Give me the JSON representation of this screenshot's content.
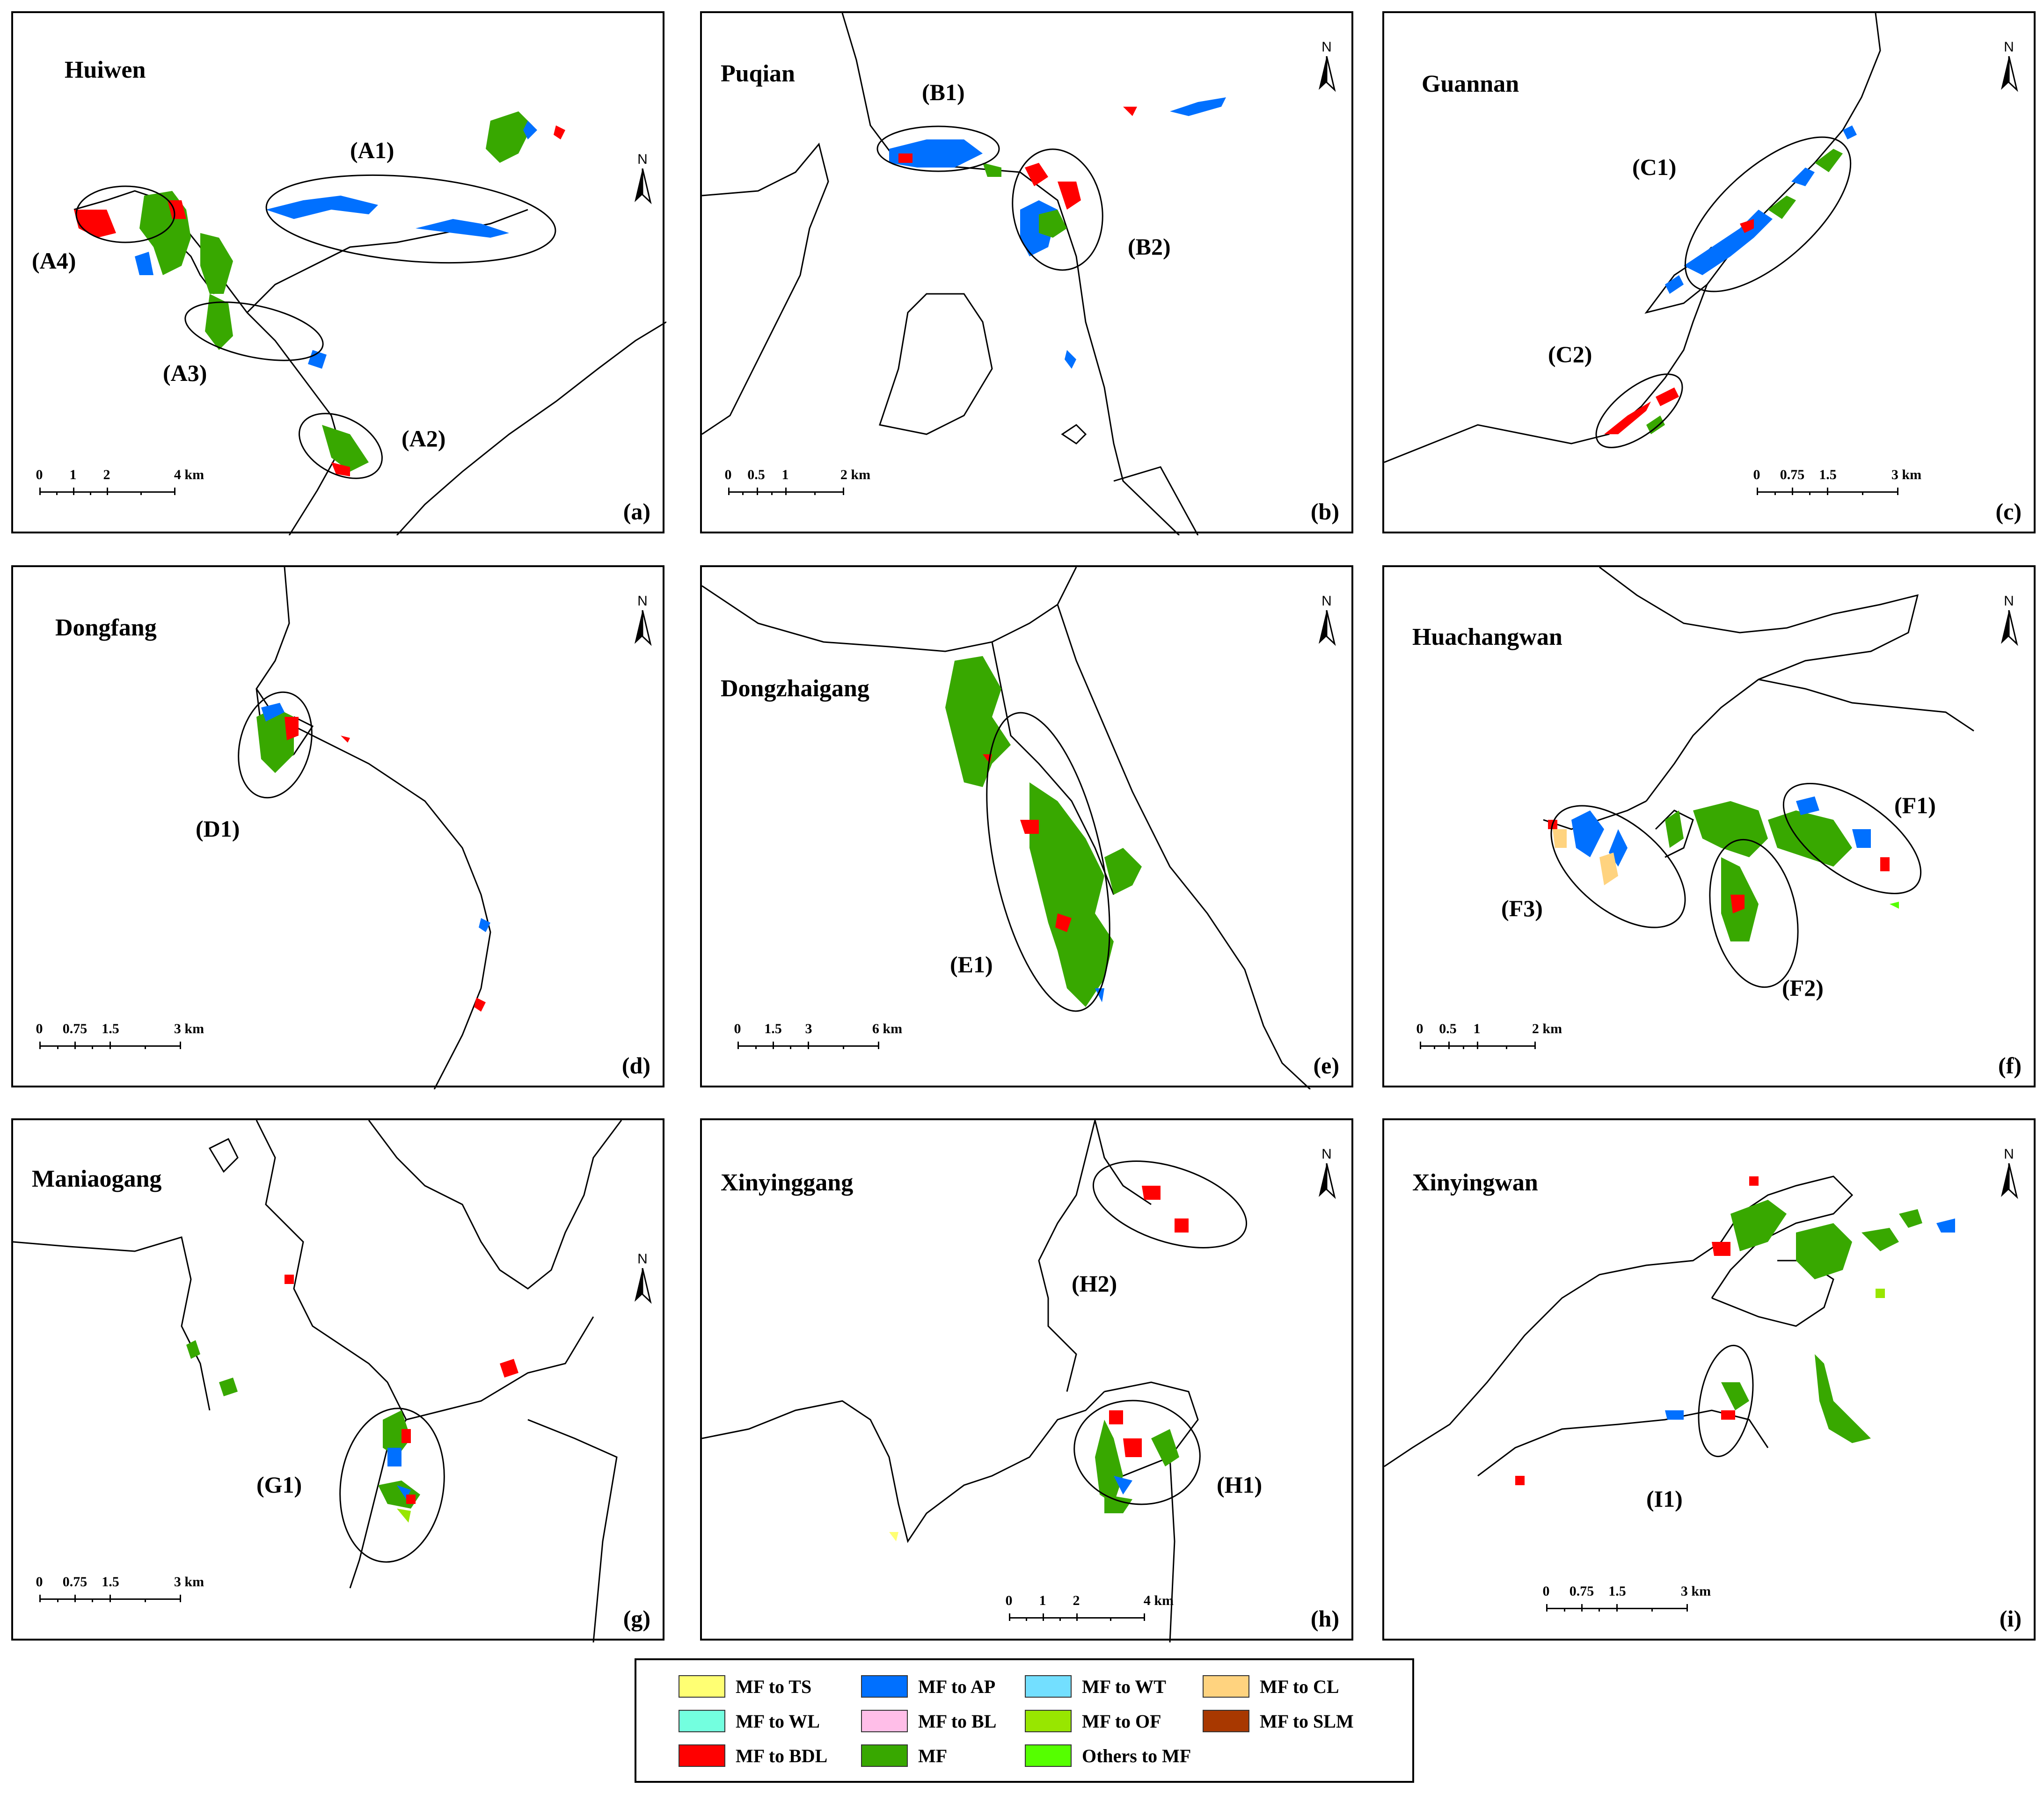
{
  "panels": [
    {
      "id": "a",
      "title": "Huiwen",
      "label": "(a)",
      "zones": [
        "(A1)",
        "(A2)",
        "(A3)",
        "(A4)"
      ],
      "scale": [
        "0",
        "1",
        "2",
        "4 km"
      ]
    },
    {
      "id": "b",
      "title": "Puqian",
      "label": "(b)",
      "zones": [
        "(B1)",
        "(B2)"
      ],
      "scale": [
        "0",
        "0.5",
        "1",
        "2 km"
      ]
    },
    {
      "id": "c",
      "title": "Guannan",
      "label": "(c)",
      "zones": [
        "(C1)",
        "(C2)"
      ],
      "scale": [
        "0",
        "0.75",
        "1.5",
        "3 km"
      ]
    },
    {
      "id": "d",
      "title": "Dongfang",
      "label": "(d)",
      "zones": [
        "(D1)"
      ],
      "scale": [
        "0",
        "0.75",
        "1.5",
        "3 km"
      ]
    },
    {
      "id": "e",
      "title": "Dongzhaigang",
      "label": "(e)",
      "zones": [
        "(E1)"
      ],
      "scale": [
        "0",
        "1.5",
        "3",
        "6 km"
      ]
    },
    {
      "id": "f",
      "title": "Huachangwan",
      "label": "(f)",
      "zones": [
        "(F1)",
        "(F2)",
        "(F3)"
      ],
      "scale": [
        "0",
        "0.5",
        "1",
        "2 km"
      ]
    },
    {
      "id": "g",
      "title": "Maniaogang",
      "label": "(g)",
      "zones": [
        "(G1)"
      ],
      "scale": [
        "0",
        "0.75",
        "1.5",
        "3 km"
      ]
    },
    {
      "id": "h",
      "title": "Xinyinggang",
      "label": "(h)",
      "zones": [
        "(H1)",
        "(H2)"
      ],
      "scale": [
        "0",
        "1",
        "2",
        "4 km"
      ]
    },
    {
      "id": "i",
      "title": "Xinyingwan",
      "label": "(i)",
      "zones": [
        "(I1)"
      ],
      "scale": [
        "0",
        "0.75",
        "1.5",
        "3 km"
      ]
    }
  ],
  "north_label": "N",
  "legend": [
    {
      "label": "MF to TS",
      "color": "#ffff73"
    },
    {
      "label": "MF to AP",
      "color": "#0070ff"
    },
    {
      "label": "MF to WT",
      "color": "#73dfff"
    },
    {
      "label": "MF to CL",
      "color": "#ffd37f"
    },
    {
      "label": "MF to WL",
      "color": "#73ffdf"
    },
    {
      "label": "MF to BL",
      "color": "#ffbee8"
    },
    {
      "label": "MF to OF",
      "color": "#98e600"
    },
    {
      "label": "MF to SLM",
      "color": "#a83800"
    },
    {
      "label": "MF to BDL",
      "color": "#ff0000"
    },
    {
      "label": "MF",
      "color": "#38a800"
    },
    {
      "label": "Others to MF",
      "color": "#55ff00"
    }
  ]
}
